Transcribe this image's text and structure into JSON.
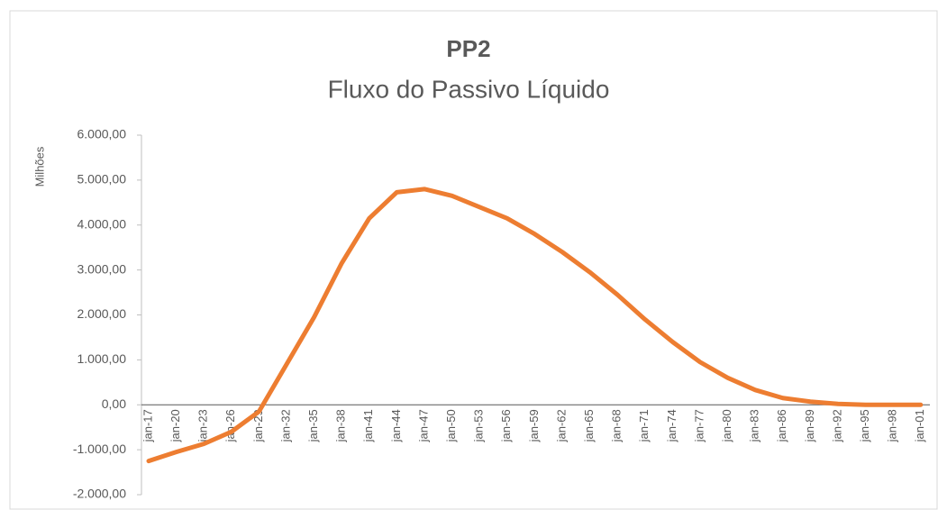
{
  "chart_data": {
    "type": "line",
    "title": "PP2",
    "subtitle": "Fluxo do Passivo Líquido",
    "ylabel": "Milhões",
    "categories": [
      "jan-17",
      "jan-20",
      "jan-23",
      "jan-26",
      "jan-29",
      "jan-32",
      "jan-35",
      "jan-38",
      "jan-41",
      "jan-44",
      "jan-47",
      "jan-50",
      "jan-53",
      "jan-56",
      "jan-59",
      "jan-62",
      "jan-65",
      "jan-68",
      "jan-71",
      "jan-74",
      "jan-77",
      "jan-80",
      "jan-83",
      "jan-86",
      "jan-89",
      "jan-92",
      "jan-95",
      "jan-98",
      "jan-01"
    ],
    "series": [
      {
        "name": "Fluxo do Passivo Líquido",
        "color": "#ed7d31",
        "values": [
          -1250,
          -1050,
          -870,
          -600,
          -150,
          900,
          1950,
          3150,
          4150,
          4730,
          4800,
          4650,
          4400,
          4150,
          3800,
          3400,
          2950,
          2450,
          1900,
          1400,
          950,
          600,
          330,
          150,
          70,
          20,
          0,
          0,
          0
        ]
      }
    ],
    "ylim": [
      -2000,
      6000
    ],
    "yticks": [
      {
        "value": -2000,
        "label": "-2.000,00"
      },
      {
        "value": -1000,
        "label": "-1.000,00"
      },
      {
        "value": 0,
        "label": "0,00"
      },
      {
        "value": 1000,
        "label": "1.000,00"
      },
      {
        "value": 2000,
        "label": "2.000,00"
      },
      {
        "value": 3000,
        "label": "3.000,00"
      },
      {
        "value": 4000,
        "label": "4.000,00"
      },
      {
        "value": 5000,
        "label": "5.000,00"
      },
      {
        "value": 6000,
        "label": "6.000,00"
      }
    ],
    "grid": false
  }
}
